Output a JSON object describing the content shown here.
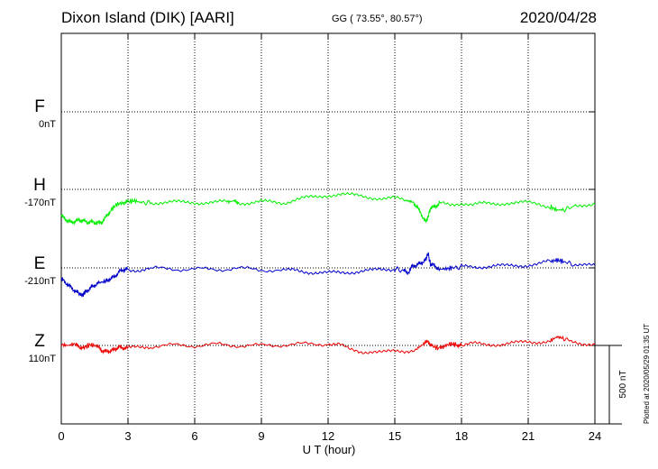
{
  "header": {
    "station": "Dixon Island (DIK)  [AARI]",
    "coords": "GG ( 73.55°,  80.57°)",
    "date": "2020/04/28"
  },
  "plotted": "Plotted at 2020/05/29 01:35 UT",
  "scale_label": "500 nT",
  "channels": [
    {
      "name": "F",
      "offset": "0nT",
      "color": "#ffa500"
    },
    {
      "name": "H",
      "offset": "-170nT",
      "color": "#00ee00"
    },
    {
      "name": "E",
      "offset": "-210nT",
      "color": "#0000cc"
    },
    {
      "name": "Z",
      "offset": "110nT",
      "color": "#ee0000"
    }
  ],
  "chart_data": {
    "type": "line",
    "xlabel": "U T (hour)",
    "xlim": [
      0,
      24
    ],
    "xticks": [
      0,
      3,
      6,
      9,
      12,
      15,
      18,
      21,
      24
    ],
    "grid": true,
    "scale_nT": 500,
    "series": [
      {
        "name": "H",
        "color": "#00ee00",
        "x": [
          0,
          0.2,
          0.4,
          0.6,
          0.8,
          1.0,
          1.2,
          1.4,
          1.6,
          1.8,
          2.0,
          2.2,
          2.5,
          2.8,
          3.0,
          3.3,
          3.6,
          4.0,
          4.5,
          5.0,
          5.5,
          6.0,
          6.5,
          7.0,
          7.5,
          7.8,
          8.0,
          8.5,
          9.0,
          9.5,
          10.0,
          10.5,
          11.0,
          11.5,
          12.0,
          12.5,
          13.0,
          13.5,
          14.0,
          14.5,
          15.0,
          15.5,
          15.8,
          16.0,
          16.2,
          16.4,
          16.5,
          16.6,
          16.8,
          17.0,
          17.5,
          18.0,
          18.5,
          19.0,
          19.5,
          20.0,
          20.5,
          21.0,
          21.5,
          22.0,
          22.3,
          22.6,
          23.0,
          23.5,
          24.0
        ],
        "y": [
          -170,
          -190,
          -210,
          -205,
          -195,
          -200,
          -210,
          -205,
          -215,
          -210,
          -180,
          -135,
          -95,
          -85,
          -78,
          -72,
          -84,
          -85,
          -80,
          -82,
          -85,
          -83,
          -82,
          -84,
          -80,
          -72,
          -83,
          -85,
          -80,
          -82,
          -84,
          -65,
          -55,
          -50,
          -35,
          -30,
          -38,
          -42,
          -50,
          -60,
          -58,
          -70,
          -80,
          -110,
          -160,
          -210,
          -175,
          -120,
          -110,
          -90,
          -95,
          -85,
          -100,
          -92,
          -90,
          -85,
          -88,
          -86,
          -90,
          -110,
          -132,
          -128,
          -112,
          -98,
          -85
        ]
      },
      {
        "name": "E",
        "color": "#0000cc",
        "x": [
          0,
          0.2,
          0.4,
          0.6,
          0.8,
          0.95,
          1.1,
          1.3,
          1.5,
          1.7,
          2.0,
          2.2,
          2.4,
          2.6,
          2.8,
          3.0,
          3.5,
          4.0,
          5.0,
          6.0,
          7.0,
          8.0,
          9.0,
          10.0,
          10.5,
          11.0,
          11.5,
          12.0,
          12.5,
          13.0,
          13.5,
          14.0,
          14.5,
          15.0,
          15.4,
          15.6,
          15.8,
          16.0,
          16.2,
          16.4,
          16.5,
          16.6,
          16.8,
          17.0,
          17.3,
          17.6,
          18.0,
          18.5,
          19.0,
          19.5,
          20.0,
          20.5,
          21.0,
          21.5,
          22.0,
          22.3,
          22.6,
          23.0,
          23.5,
          24.0
        ],
        "y": [
          -70,
          -95,
          -120,
          -145,
          -165,
          -175,
          -150,
          -130,
          -110,
          -95,
          -85,
          -70,
          -55,
          -25,
          -10,
          -10,
          -12,
          -5,
          -6,
          -10,
          -8,
          -5,
          -10,
          -20,
          -15,
          -22,
          -30,
          -35,
          -30,
          -25,
          -20,
          -18,
          -12,
          -5,
          -20,
          -30,
          10,
          20,
          30,
          55,
          95,
          20,
          15,
          -10,
          -5,
          0,
          5,
          8,
          10,
          12,
          10,
          15,
          20,
          25,
          40,
          50,
          40,
          25,
          15,
          10
        ]
      },
      {
        "name": "Z",
        "color": "#ee0000",
        "x": [
          0,
          0.3,
          0.6,
          0.8,
          1.0,
          1.3,
          1.6,
          1.8,
          2.0,
          2.2,
          2.4,
          2.6,
          2.8,
          3.0,
          3.5,
          4.0,
          5.0,
          6.0,
          7.0,
          8.0,
          9.0,
          10.0,
          11.0,
          12.0,
          12.5,
          13.0,
          13.5,
          14.0,
          14.5,
          15.0,
          15.5,
          16.0,
          16.3,
          16.5,
          16.7,
          17.0,
          17.2,
          17.5,
          17.8,
          18.0,
          18.5,
          19.0,
          19.5,
          20.0,
          20.5,
          21.0,
          21.5,
          22.0,
          22.3,
          22.6,
          23.0,
          23.5,
          24.0
        ],
        "y": [
          5,
          0,
          10,
          -10,
          -15,
          5,
          -5,
          -30,
          -40,
          -35,
          -25,
          -10,
          -15,
          -20,
          -10,
          -5,
          0,
          0,
          5,
          0,
          -2,
          5,
          8,
          12,
          5,
          -30,
          -40,
          -35,
          -45,
          -40,
          -35,
          -20,
          10,
          25,
          -5,
          -20,
          -5,
          10,
          5,
          0,
          10,
          5,
          8,
          12,
          15,
          20,
          25,
          30,
          55,
          45,
          25,
          15,
          5
        ]
      }
    ]
  }
}
